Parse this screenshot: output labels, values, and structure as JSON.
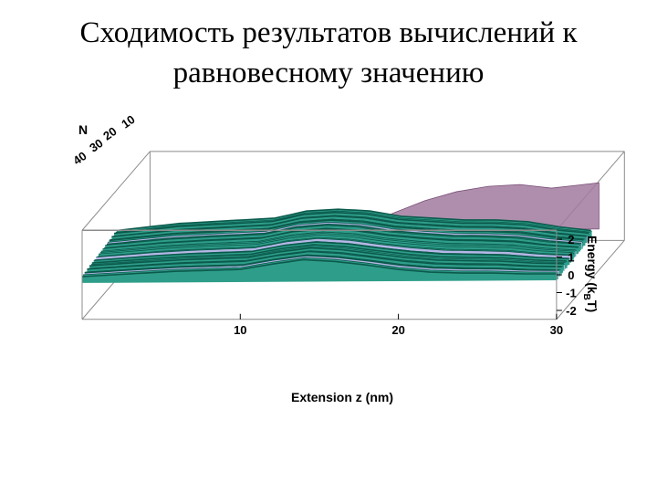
{
  "title_lines": [
    "Сходимость результатов вычислений к",
    "равновесному значению"
  ],
  "chart_data": {
    "type": "area",
    "title": "",
    "xlabel": "Extension z (nm)",
    "ylabel": "Energy (kBT)",
    "ylabel_parts": {
      "prefix": "Energy (k",
      "sub": "B",
      "suffix": "T)"
    },
    "zlabel": "N",
    "x_ticks": [
      10,
      20,
      30
    ],
    "y_ticks": [
      2,
      1,
      0,
      -1,
      -2
    ],
    "z_ticks": [
      10,
      20,
      30,
      40
    ],
    "xlim": [
      0,
      30
    ],
    "ylim": [
      -2.5,
      2.5
    ],
    "zlim": [
      0,
      50
    ],
    "grid": false,
    "colors": {
      "surface": "#2e9e8a",
      "surface_dark": "#0b5a4c",
      "highlight": "#b5b7e6",
      "back_sheet": "#a07a9e",
      "box": "#8c8c8c"
    },
    "series": [
      {
        "name": "",
        "role": "back",
        "x": [
          15,
          17,
          19,
          21,
          23,
          25,
          27,
          29,
          30
        ],
        "y": [
          -0.2,
          0.7,
          1.4,
          1.9,
          2.2,
          2.3,
          2.1,
          2.3,
          2.4
        ]
      },
      {
        "name": "",
        "role": "front",
        "x": [
          0,
          2,
          4,
          6,
          8,
          10,
          12,
          14,
          16,
          18,
          20,
          22,
          24,
          26,
          28,
          30
        ],
        "y": [
          -0.1,
          0.0,
          0.1,
          0.2,
          0.25,
          0.3,
          0.6,
          0.85,
          0.75,
          0.55,
          0.3,
          0.15,
          0.1,
          0.1,
          0.05,
          0.05
        ]
      },
      {
        "name": "",
        "role": "rear",
        "x": [
          0,
          2,
          4,
          6,
          8,
          10,
          12,
          14,
          16,
          18,
          20,
          22,
          24,
          26,
          28,
          30
        ],
        "y": [
          0.2,
          0.4,
          0.6,
          0.7,
          0.8,
          0.9,
          1.3,
          1.4,
          1.3,
          1.0,
          0.9,
          0.8,
          0.8,
          0.7,
          0.4,
          0.2
        ]
      }
    ]
  }
}
